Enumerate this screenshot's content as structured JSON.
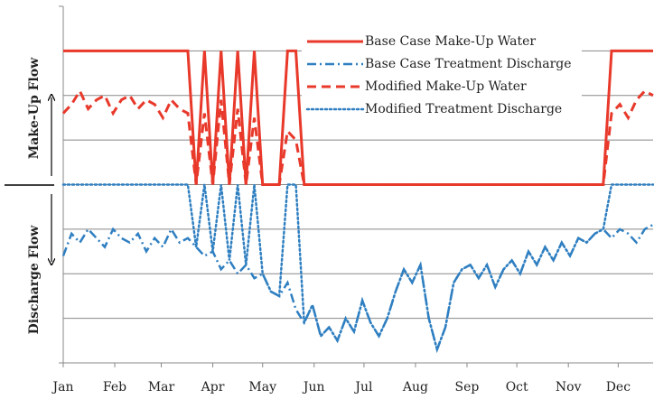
{
  "chart_data": {
    "type": "line",
    "xlim": [
      0,
      355
    ],
    "xticks": [
      {
        "value": 0,
        "label": "Jan"
      },
      {
        "value": 31,
        "label": "Feb"
      },
      {
        "value": 59,
        "label": "Mar"
      },
      {
        "value": 90,
        "label": "Apr"
      },
      {
        "value": 120,
        "label": "May"
      },
      {
        "value": 151,
        "label": "Jun"
      },
      {
        "value": 181,
        "label": "Jul"
      },
      {
        "value": 212,
        "label": "Aug"
      },
      {
        "value": 243,
        "label": "Sep"
      },
      {
        "value": 273,
        "label": "Oct"
      },
      {
        "value": 304,
        "label": "Nov"
      },
      {
        "value": 334,
        "label": "Dec"
      }
    ],
    "ylim": [
      -4,
      4
    ],
    "yticks": [
      -4,
      -3,
      -2,
      -1,
      0,
      1,
      2,
      3,
      4
    ],
    "grid": true,
    "legend": "top",
    "annotations": [
      "Make-Up Flow",
      "Discharge Flow"
    ],
    "x": [
      0,
      5,
      10,
      15,
      20,
      25,
      30,
      35,
      40,
      45,
      50,
      55,
      60,
      65,
      70,
      75,
      80,
      85,
      90,
      95,
      100,
      105,
      110,
      115,
      120,
      125,
      130,
      135,
      140,
      145,
      150,
      155,
      160,
      165,
      170,
      175,
      180,
      185,
      190,
      195,
      200,
      205,
      210,
      215,
      220,
      225,
      230,
      235,
      240,
      245,
      250,
      255,
      260,
      265,
      270,
      275,
      280,
      285,
      290,
      295,
      300,
      305,
      310,
      315,
      320,
      325,
      330,
      335,
      340,
      345,
      350,
      355
    ],
    "series": [
      {
        "name": "Base Case Make-Up Water",
        "color": "#e8392b",
        "style": "solid",
        "width": 3,
        "values": [
          3,
          3,
          3,
          3,
          3,
          3,
          3,
          3,
          3,
          3,
          3,
          3,
          3,
          3,
          3,
          3,
          0,
          3,
          0,
          3,
          0,
          3,
          0,
          3,
          0,
          0,
          0,
          3,
          3,
          0,
          0,
          0,
          0,
          0,
          0,
          0,
          0,
          0,
          0,
          0,
          0,
          0,
          0,
          0,
          0,
          0,
          0,
          0,
          0,
          0,
          0,
          0,
          0,
          0,
          0,
          0,
          0,
          0,
          0,
          0,
          0,
          0,
          0,
          0,
          0,
          0,
          3,
          3,
          3,
          3,
          3,
          3
        ]
      },
      {
        "name": "Base Case Treatment Discharge",
        "color": "#2f7fc1",
        "style": "dashdot",
        "width": 2.5,
        "values": [
          -1.6,
          -1.1,
          -1.3,
          -1.0,
          -1.2,
          -1.4,
          -1.0,
          -1.2,
          -1.3,
          -1.1,
          -1.5,
          -1.2,
          -1.4,
          -1.0,
          -1.3,
          -1.2,
          -1.4,
          -1.6,
          -1.5,
          -1.9,
          -1.7,
          -2.0,
          -1.8,
          -2.1,
          -2.0,
          -2.4,
          -2.5,
          -2.2,
          -2.8,
          -3.1,
          -2.7,
          -3.4,
          -3.2,
          -3.5,
          -3.0,
          -3.3,
          -2.6,
          -3.1,
          -3.4,
          -3.0,
          -2.4,
          -1.9,
          -2.2,
          -1.8,
          -3.0,
          -3.7,
          -3.2,
          -2.2,
          -1.9,
          -1.8,
          -2.1,
          -1.8,
          -2.3,
          -1.9,
          -1.7,
          -2.0,
          -1.5,
          -1.8,
          -1.4,
          -1.7,
          -1.3,
          -1.6,
          -1.2,
          -1.3,
          -1.1,
          -1.0,
          -1.2,
          -1.0,
          -1.1,
          -1.3,
          -1.0,
          -0.9
        ]
      },
      {
        "name": "Modified Make-Up Water",
        "color": "#e8392b",
        "style": "dash",
        "width": 3,
        "values": [
          1.6,
          1.8,
          2.1,
          1.7,
          1.9,
          2.0,
          1.6,
          1.9,
          2.0,
          1.7,
          1.9,
          1.8,
          1.5,
          1.9,
          1.7,
          1.6,
          0,
          1.6,
          0,
          1.9,
          0,
          1.7,
          0,
          1.5,
          0,
          0,
          0,
          1.2,
          1.0,
          0,
          0,
          0,
          0,
          0,
          0,
          0,
          0,
          0,
          0,
          0,
          0,
          0,
          0,
          0,
          0,
          0,
          0,
          0,
          0,
          0,
          0,
          0,
          0,
          0,
          0,
          0,
          0,
          0,
          0,
          0,
          0,
          0,
          0,
          0,
          0,
          0,
          1.6,
          1.8,
          1.5,
          1.9,
          2.1,
          2.0
        ]
      },
      {
        "name": "Modified Treatment Discharge",
        "color": "#2f7fc1",
        "style": "dot",
        "width": 2.5,
        "values": [
          0,
          0,
          0,
          0,
          0,
          0,
          0,
          0,
          0,
          0,
          0,
          0,
          0,
          0,
          0,
          0,
          -1.4,
          0,
          -1.5,
          0,
          -1.7,
          0,
          -1.8,
          0,
          -2.0,
          -2.4,
          -2.5,
          0,
          0,
          -3.1,
          -2.7,
          -3.4,
          -3.2,
          -3.5,
          -3.0,
          -3.3,
          -2.6,
          -3.1,
          -3.4,
          -3.0,
          -2.4,
          -1.9,
          -2.2,
          -1.8,
          -3.0,
          -3.7,
          -3.2,
          -2.2,
          -1.9,
          -1.8,
          -2.1,
          -1.8,
          -2.3,
          -1.9,
          -1.7,
          -2.0,
          -1.5,
          -1.8,
          -1.4,
          -1.7,
          -1.3,
          -1.6,
          -1.2,
          -1.3,
          -1.1,
          -1.0,
          0,
          0,
          0,
          0,
          0,
          0
        ]
      }
    ]
  }
}
